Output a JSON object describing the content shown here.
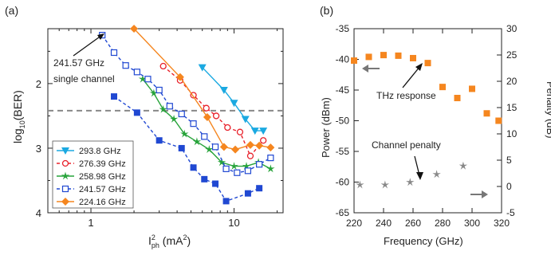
{
  "chart_data": [
    {
      "type": "line",
      "panel_label": "(a)",
      "xlabel_base": "I",
      "xlabel_sup": "2",
      "xlabel_sub": "ph",
      "xlabel_unit": " (mA",
      "xlabel_unit_sup": "2",
      "xlabel_close": ")",
      "ylabel": "log10(BER)",
      "ylabel_base": "log",
      "ylabel_sub": "10",
      "ylabel_rest": "(BER)",
      "x_scale": "log",
      "xlim": [
        0.5,
        22
      ],
      "ylim": [
        4,
        1.15
      ],
      "y_inverted": true,
      "xtick_labels": [
        {
          "value": 1,
          "label": "1"
        },
        {
          "value": 10,
          "label": "10"
        }
      ],
      "ytick_labels": [
        {
          "value": 2,
          "label": "2"
        },
        {
          "value": 3,
          "label": "3"
        },
        {
          "value": 4,
          "label": "4"
        }
      ],
      "threshold": {
        "y": 2.42,
        "style": "dashed",
        "color": "#888888"
      },
      "annotation": {
        "lines": [
          "241.57 GHz",
          "single channel"
        ],
        "arrow_to": {
          "x": 1.2,
          "y": 1.25
        }
      },
      "legend_position": "bottom-left",
      "series": [
        {
          "name": "293.8 GHz",
          "color": "#1ba9e1",
          "marker": "triangle-down",
          "linestyle": "solid",
          "x": [
            6,
            8.5,
            10,
            12,
            14,
            16
          ],
          "y": [
            1.75,
            2.1,
            2.3,
            2.55,
            2.73,
            2.73
          ]
        },
        {
          "name": "276.39 GHz",
          "color": "#e8202a",
          "marker": "circle-open",
          "linestyle": "dashed",
          "x": [
            3.2,
            4.2,
            5.2,
            6.4,
            7.5,
            9,
            11,
            13,
            16
          ],
          "y": [
            1.73,
            1.95,
            2.18,
            2.38,
            2.5,
            2.68,
            2.75,
            3.12,
            2.88
          ]
        },
        {
          "name": "258.98 GHz",
          "color": "#27a33a",
          "marker": "star",
          "linestyle": "solid",
          "x": [
            2.3,
            2.75,
            3.2,
            3.8,
            4.5,
            5.5,
            6.7,
            8.2,
            10,
            12.2,
            14.8,
            18
          ],
          "y": [
            1.93,
            2.15,
            2.4,
            2.55,
            2.78,
            2.9,
            3.02,
            3.22,
            3.28,
            3.28,
            3.22,
            3.32
          ]
        },
        {
          "name": "241.57 GHz",
          "color": "#2048d2",
          "marker": "square-open",
          "linestyle": "dashed",
          "x": [
            1.2,
            1.45,
            1.75,
            2.1,
            2.5,
            3.0,
            3.55,
            4.3,
            5.2,
            6.2,
            7.4,
            8.8,
            10.5,
            12.5,
            15,
            18
          ],
          "y": [
            1.25,
            1.52,
            1.72,
            1.82,
            1.93,
            2.1,
            2.35,
            2.47,
            2.62,
            2.82,
            2.98,
            3.32,
            3.38,
            3.35,
            3.25,
            3.15
          ]
        },
        {
          "name": "241.57 GHz",
          "color": "#2048d2",
          "marker": "square-filled",
          "linestyle": "dashed",
          "x": [
            1.45,
            2.1,
            3.0,
            4.3,
            5.2,
            6.2,
            7.4,
            8.8,
            12.5,
            15
          ],
          "y": [
            2.2,
            2.45,
            2.88,
            3.0,
            3.3,
            3.48,
            3.55,
            3.82,
            3.7,
            3.62
          ]
        },
        {
          "name": "224.16 GHz",
          "color": "#f5861f",
          "marker": "diamond",
          "linestyle": "solid",
          "x": [
            2.0,
            4.2,
            6.5,
            8.5,
            10.2,
            13,
            15,
            18
          ],
          "y": [
            1.15,
            1.9,
            2.52,
            2.98,
            3.02,
            2.95,
            2.96,
            2.99
          ]
        }
      ]
    },
    {
      "type": "scatter",
      "panel_label": "(b)",
      "xlabel": "Frequency (GHz)",
      "ylabel_left": "Power (dBm)",
      "ylabel_right": "Penalty (dB)",
      "xlim": [
        220,
        320
      ],
      "ylim_left": [
        -65,
        -35
      ],
      "ylim_right": [
        -5,
        30
      ],
      "xtick_labels": [
        "220",
        "240",
        "260",
        "280",
        "300",
        "320"
      ],
      "ytick_left_labels": [
        "-35",
        "-40",
        "-45",
        "-50",
        "-55",
        "-60",
        "-65"
      ],
      "ytick_right_labels": [
        "30",
        "25",
        "20",
        "15",
        "10",
        "5",
        "0",
        "-5"
      ],
      "annotations": [
        "THz response",
        "Channel penalty"
      ],
      "series": [
        {
          "name": "THz response",
          "color": "#f5861f",
          "marker": "square",
          "axis": "left",
          "x": [
            220,
            230,
            240,
            250,
            260,
            270,
            280,
            290,
            300,
            310,
            318
          ],
          "y": [
            -40.2,
            -39.6,
            -39.3,
            -39.4,
            -39.8,
            -40.6,
            -44.5,
            -46.3,
            -44.8,
            -48.8,
            -50.0
          ]
        },
        {
          "name": "Channel penalty",
          "color": "#888888",
          "marker": "star",
          "axis": "right",
          "x": [
            224,
            241,
            258,
            276,
            294
          ],
          "y": [
            0.3,
            0.3,
            0.8,
            2.3,
            3.9
          ]
        }
      ]
    }
  ]
}
